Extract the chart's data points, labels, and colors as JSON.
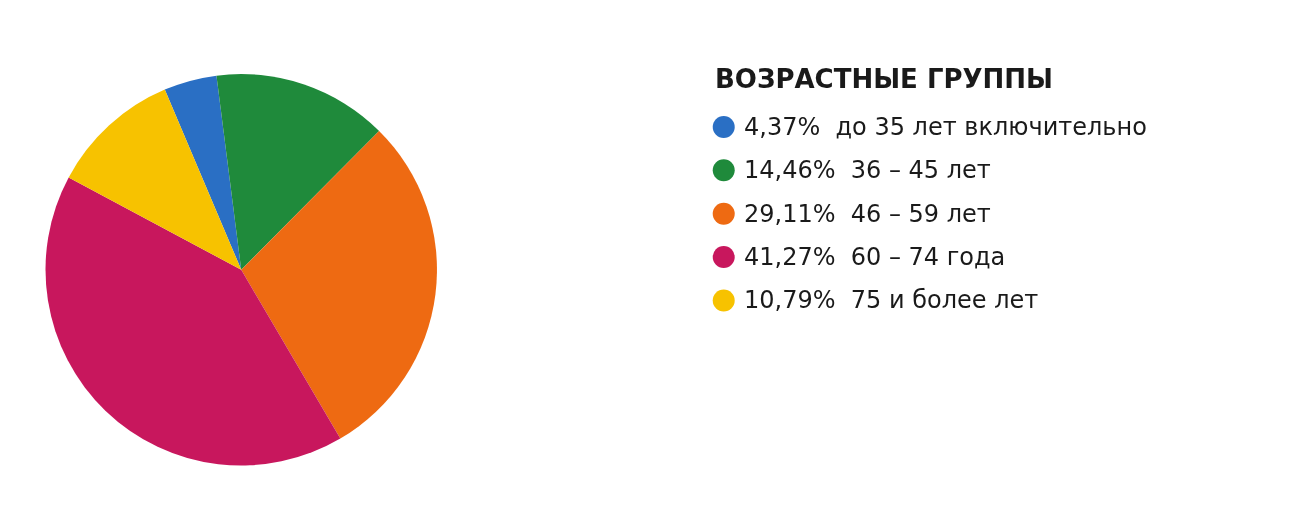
{
  "chart_data": {
    "type": "pie",
    "legend_title": "ВОЗРАСТНЫЕ ГРУППЫ",
    "categories": [
      "до 35 лет включительно",
      "36 – 45 лет",
      "46 – 59 лет",
      "60 – 74 года",
      "75 и более лет"
    ],
    "values": [
      4.37,
      14.46,
      29.11,
      41.27,
      10.79
    ],
    "value_labels": [
      "4,37%",
      "14,46%",
      "29,11%",
      "41,27%",
      "10,79%"
    ],
    "colors": [
      "#2a6fc4",
      "#1f8a3b",
      "#ee6a12",
      "#c8175d",
      "#f7c200"
    ],
    "legend": "right"
  }
}
